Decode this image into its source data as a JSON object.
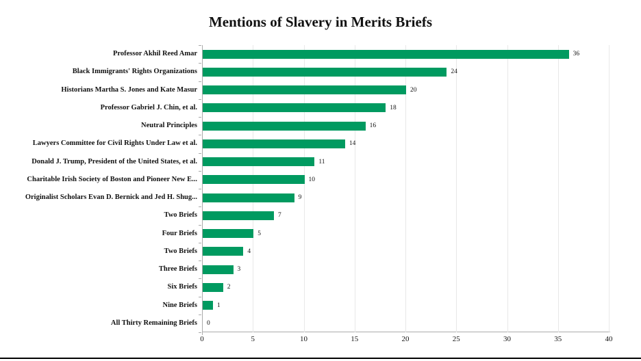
{
  "chart_data": {
    "type": "bar",
    "orientation": "horizontal",
    "title": "Mentions of Slavery in Merits Briefs",
    "categories": [
      "Professor Akhil Reed Amar",
      "Black Immigrants' Rights Organizations",
      "Historians Martha S. Jones and Kate Masur",
      "Professor Gabriel J. Chin, et al.",
      "Neutral Principles",
      "Lawyers Committee for Civil Rights Under Law et al.",
      "Donald J. Trump, President of the United States, et al.",
      "Charitable Irish Society of Boston and Pioneer New E...",
      "Originalist Scholars Evan D. Bernick and Jed H. Shug...",
      "Two Briefs",
      "Four Briefs",
      "Two Briefs",
      "Three Briefs",
      "Six Briefs",
      "Nine Briefs",
      "All Thirty Remaining Briefs"
    ],
    "values": [
      36,
      24,
      20,
      18,
      16,
      14,
      11,
      10,
      9,
      7,
      5,
      4,
      3,
      2,
      1,
      0
    ],
    "xlabel": "",
    "ylabel": "",
    "xlim": [
      0,
      40
    ],
    "x_ticks": [
      0,
      5,
      10,
      15,
      20,
      25,
      30,
      35,
      40
    ],
    "grid": "vertical",
    "value_labels_shown": true,
    "legend": "none"
  },
  "colors": {
    "background": "#FFFFFF",
    "bar": "#009A60",
    "gridline": "#E8E8E8",
    "axis": "#AAAAAA",
    "text": "#111111",
    "bottom_border": "#000000"
  }
}
